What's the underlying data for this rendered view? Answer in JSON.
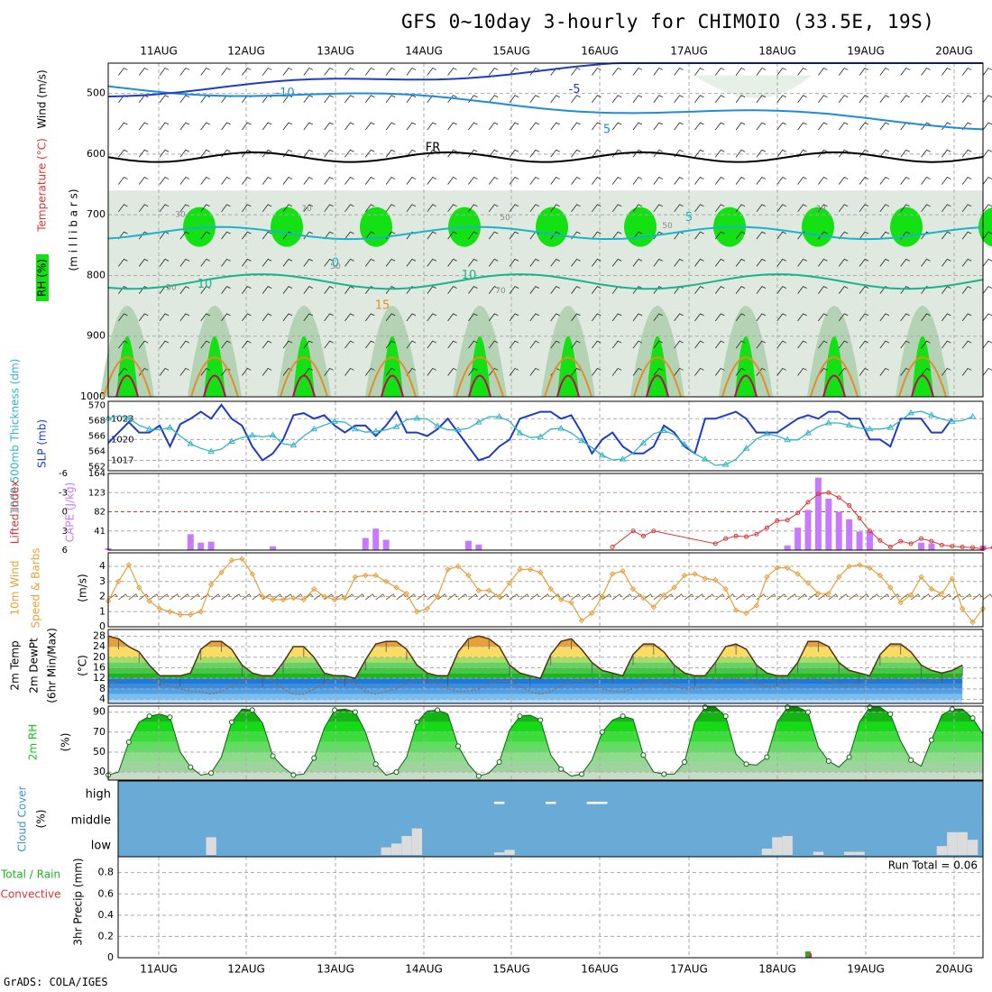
{
  "title": "GFS 0~10day 3-hourly for CHIMOIO (33.5E, 19S)",
  "credit": "GrADS: COLA/IGES",
  "days": [
    "11AUG",
    "12AUG",
    "13AUG",
    "14AUG",
    "15AUG",
    "16AUG",
    "17AUG",
    "18AUG",
    "19AUG",
    "20AUG"
  ],
  "colors": {
    "rh_dark": "#14e114",
    "rh_light": "#b4d2b4",
    "slp": "#1e3cc8",
    "thickness": "#32b4c8",
    "cape": "#c87aff",
    "lifted_index": "#e03232",
    "wind_speed": "#e6a03c",
    "barbs": "#8c5a28",
    "temp_warm": "#e6a03c",
    "temp_cool": "#1e78dc",
    "rh2m": "#14c814",
    "cloud_bg": "#6aaad6",
    "cloud_bar": "#dcdcdc",
    "precip_total": "#1eb41e",
    "precip_conv": "#e03232"
  },
  "chart_data": [
    {
      "type": "heatmap",
      "panel": "upper-air",
      "ylabel_parts": [
        "RH (%)",
        "Temperature (°C)",
        "Wind (m/s)"
      ],
      "ylabel_sub": "(m i l l i b a r s)",
      "y_ticks": [
        500,
        600,
        700,
        800,
        900,
        1000
      ],
      "ylim": [
        450,
        1000
      ],
      "contour_labels": [
        "-10",
        "-5",
        "FR",
        "5",
        "10",
        "15",
        "0",
        "5",
        "10"
      ],
      "rh_labels": [
        "70",
        "50",
        "30",
        "50",
        "70",
        "50",
        "30",
        "50"
      ]
    },
    {
      "type": "line",
      "panel": "pressure",
      "ylabel_left": "1000-500mb Thickness (dm)",
      "ylabel_right": "SLP (mb)",
      "left_ticks": [
        "570",
        "568",
        "566",
        "564",
        "562"
      ],
      "left_range": [
        561.5,
        570.5
      ],
      "right_ticks": [
        "1023",
        "1020",
        "1017"
      ],
      "right_range": [
        1015.5,
        1025.5
      ],
      "series": [
        {
          "name": "SLP",
          "axis": "right",
          "values": [
            1019.5,
            1021,
            1022.5,
            1021,
            1021,
            1022,
            1019,
            1022.2,
            1023,
            1024,
            1023,
            1025,
            1023,
            1022,
            1019,
            1017,
            1018,
            1020,
            1023.5,
            1023.8,
            1023,
            1023.5,
            1022,
            1021,
            1022,
            1022,
            1020.5,
            1022,
            1024,
            1021,
            1021,
            1020.5,
            1021.5,
            1023,
            1021,
            1019,
            1017,
            1017.5,
            1019,
            1020,
            1023,
            1023.5,
            1024,
            1024,
            1023,
            1023.5,
            1021,
            1018,
            1020,
            1021,
            1019,
            1018,
            1018,
            1019,
            1022,
            1021,
            1019,
            1018,
            1023,
            1023,
            1023.5,
            1024,
            1023,
            1021,
            1021,
            1021,
            1022,
            1023,
            1023.5,
            1023,
            1024,
            1024,
            1023,
            1023,
            1020,
            1020,
            1019,
            1023,
            1023,
            1023,
            1021,
            1021,
            1023
          ]
        },
        {
          "name": "Thickness",
          "axis": "left",
          "values": [
            568.3,
            568.6,
            568.3,
            567.4,
            566.9,
            566.8,
            567.1,
            566.0,
            565.0,
            564.4,
            564.0,
            564.3,
            565.3,
            565.8,
            566.1,
            565.9,
            566.1,
            565.0,
            564.8,
            566.0,
            566.9,
            567.4,
            567.9,
            567.8,
            566.9,
            566.5,
            566.6,
            566.8,
            567.2,
            568.1,
            568.3,
            568.2,
            567.3,
            566.8,
            566.8,
            567.0,
            567.8,
            568.5,
            568.5,
            567.9,
            566.4,
            565.8,
            565.9,
            566.9,
            567.0,
            566.4,
            565.4,
            564.5,
            563.5,
            562.9,
            563.0,
            563.8,
            565.1,
            566.3,
            566.7,
            566.2,
            564.9,
            563.7,
            563.0,
            562.2,
            562.3,
            563.0,
            564.4,
            565.6,
            566.3,
            566.0,
            565.5,
            565.5,
            566.4,
            567.2,
            567.7,
            567.7,
            567.4,
            567.0,
            566.9,
            566.9,
            567.1,
            568.0,
            569.0,
            569.2,
            568.7,
            568.2,
            567.9,
            568.0,
            568.5
          ]
        }
      ]
    },
    {
      "type": "bar",
      "panel": "instability",
      "ylabel_left": "Lifted Index",
      "ylabel_right": "CAPE (J/kg)",
      "left_ticks": [
        "-6",
        "-3",
        "0",
        "3",
        "6"
      ],
      "right_ticks": [
        "164",
        "123",
        "82",
        "41"
      ],
      "cape_range": [
        0,
        164
      ],
      "li_range": [
        -6,
        6
      ],
      "cape": [
        0,
        0,
        0,
        0,
        0,
        0,
        0,
        0,
        0,
        0,
        0,
        0,
        0,
        0,
        0,
        0,
        0,
        0,
        0,
        0,
        0,
        0,
        0,
        0,
        0,
        0,
        0,
        0,
        0,
        0,
        0,
        0,
        0,
        0,
        0,
        0,
        0,
        0,
        0,
        0,
        0,
        0,
        0,
        0,
        0,
        0,
        0,
        0,
        0,
        0,
        0,
        0,
        0,
        0,
        0,
        0,
        0,
        0,
        0,
        0,
        0,
        0,
        0,
        0,
        0,
        0,
        0,
        0,
        0,
        0,
        0,
        0,
        0,
        0,
        0,
        0,
        0,
        0,
        0,
        0,
        0
      ],
      "cape_bars": [
        [
          0,
          4
        ],
        [
          8,
          34
        ],
        [
          9,
          16
        ],
        [
          10,
          18
        ],
        [
          16,
          8
        ],
        [
          25,
          26
        ],
        [
          26,
          46
        ],
        [
          27,
          22
        ],
        [
          35,
          20
        ],
        [
          36,
          12
        ],
        [
          66,
          10
        ],
        [
          67,
          48
        ],
        [
          68,
          86
        ],
        [
          69,
          155
        ],
        [
          70,
          110
        ],
        [
          71,
          82
        ],
        [
          72,
          66
        ],
        [
          73,
          40
        ],
        [
          74,
          40
        ],
        [
          79,
          16
        ],
        [
          80,
          14
        ],
        [
          85,
          10
        ],
        [
          88,
          6
        ],
        [
          89,
          8
        ],
        [
          90,
          6
        ],
        [
          91,
          3
        ]
      ],
      "lifted_index": [
        [
          49,
          5.5
        ],
        [
          51,
          3
        ],
        [
          52,
          3.8
        ],
        [
          53,
          3
        ],
        [
          59,
          5
        ],
        [
          60,
          4.2
        ],
        [
          61,
          3.8
        ],
        [
          62,
          3.9
        ],
        [
          63,
          3.5
        ],
        [
          64,
          2.5
        ],
        [
          65,
          1.4
        ],
        [
          66,
          1.3
        ],
        [
          67,
          0.2
        ],
        [
          68,
          -1.5
        ],
        [
          69,
          -2.8
        ],
        [
          70,
          -3
        ],
        [
          71,
          -2.2
        ],
        [
          72,
          -1
        ],
        [
          73,
          1
        ],
        [
          74,
          3
        ],
        [
          75,
          4.5
        ],
        [
          76,
          5.5
        ],
        [
          77,
          4.6
        ],
        [
          78,
          5
        ],
        [
          79,
          4.2
        ],
        [
          80,
          4.6
        ],
        [
          81,
          5.2
        ],
        [
          82,
          5.4
        ],
        [
          83,
          5.5
        ],
        [
          84,
          5.6
        ],
        [
          85,
          5.8
        ],
        [
          86,
          5.6
        ],
        [
          87,
          5.3
        ],
        [
          88,
          5
        ],
        [
          89,
          5.4
        ],
        [
          90,
          5.7
        ]
      ]
    },
    {
      "type": "line",
      "panel": "wind",
      "ylabel_left": "10m Wind",
      "ylabel_mid": "Speed & Barbs",
      "ylabel_unit": "(m/s)",
      "y_ticks": [
        "4",
        "3",
        "2",
        "1",
        "0"
      ],
      "ylim": [
        0,
        4.9
      ],
      "series": [
        {
          "name": "10m Wind Speed",
          "values": [
            1.7,
            3,
            4.1,
            2.6,
            1.7,
            1.2,
            1,
            0.8,
            0.8,
            1.0,
            2.8,
            3.6,
            4.4,
            4.5,
            3.5,
            2.0,
            1.8,
            1.8,
            1.9,
            1.8,
            2.5,
            2.0,
            1.8,
            1.9,
            3.3,
            3.4,
            3.4,
            3.0,
            2.6,
            2.2,
            1.0,
            1.2,
            2.0,
            3.8,
            4.0,
            3.4,
            2.4,
            2.4,
            2.0,
            2.9,
            3.8,
            3.8,
            3.6,
            2.5,
            1.8,
            1.6,
            0.4,
            0.9,
            2.0,
            3.5,
            3.7,
            2.5,
            1.9,
            1.3,
            2.1,
            2.6,
            3.4,
            3.5,
            3.2,
            3.1,
            2.5,
            1.1,
            0.9,
            1.4,
            3.3,
            3.9,
            3.9,
            3.5,
            2.9,
            2.2,
            2.2,
            3.3,
            4.0,
            4.1,
            3.9,
            3.4,
            2.6,
            1.6,
            2.1,
            3.3,
            2.5,
            2.2,
            3.2,
            1.2,
            0.3,
            1.2
          ]
        }
      ]
    },
    {
      "type": "area",
      "panel": "temperature",
      "ylabel_lines": [
        "2m Temp",
        "2m DewPt",
        "(6hr Min/Max)"
      ],
      "ylabel_unit": "(°C)",
      "y_ticks": [
        "28",
        "24",
        "20",
        "16",
        "12",
        "8",
        "4"
      ],
      "ylim": [
        2.5,
        30.5
      ],
      "series": [
        {
          "name": "2m Temp",
          "values": [
            28,
            27,
            24,
            22,
            17,
            13,
            13,
            13,
            14,
            23,
            26,
            26,
            23,
            17,
            14,
            13,
            13,
            18,
            24,
            24,
            20,
            14,
            13,
            13,
            12,
            19,
            25,
            26,
            26,
            23,
            17,
            14,
            13,
            13,
            22,
            27,
            28,
            27,
            24,
            17,
            14,
            13,
            12,
            21,
            26,
            27,
            23,
            18,
            15,
            14,
            13,
            21,
            25,
            25,
            22,
            17,
            14,
            13,
            13,
            18,
            24,
            25,
            23,
            17,
            14,
            13,
            13,
            18,
            26,
            26,
            24,
            18,
            15,
            14,
            13,
            21,
            25,
            25,
            22,
            17,
            15,
            14,
            15,
            17
          ]
        },
        {
          "name": "2m DewPt",
          "values": [
            10,
            11,
            12,
            13,
            12,
            10,
            9,
            8,
            7,
            7,
            6,
            7,
            9,
            11,
            12,
            12,
            11,
            8,
            6,
            6,
            8,
            10,
            12,
            11,
            10,
            7,
            6,
            7,
            8,
            10,
            11,
            11,
            10,
            8,
            7,
            7,
            8,
            10,
            11,
            11,
            9,
            7,
            6,
            7,
            9,
            11,
            11,
            10,
            8,
            7,
            7,
            8,
            10,
            11,
            10,
            9,
            8,
            8,
            9,
            11,
            12,
            12,
            11,
            10,
            9,
            9,
            10,
            11,
            12,
            12,
            11,
            10,
            9,
            10,
            11,
            12,
            12,
            12,
            11,
            10,
            11,
            12,
            13,
            13
          ]
        }
      ]
    },
    {
      "type": "area",
      "panel": "humidity",
      "ylabel_left": "2m RH",
      "ylabel_unit": "(%)",
      "y_ticks": [
        "90",
        "70",
        "50",
        "30"
      ],
      "ylim": [
        22,
        96
      ],
      "values": [
        27,
        30,
        60,
        80,
        86,
        88,
        85,
        50,
        35,
        27,
        29,
        45,
        80,
        93,
        92,
        79,
        46,
        35,
        27,
        28,
        44,
        74,
        92,
        93,
        90,
        70,
        38,
        27,
        30,
        45,
        80,
        91,
        92,
        88,
        56,
        38,
        26,
        29,
        40,
        72,
        86,
        87,
        82,
        47,
        33,
        26,
        28,
        42,
        70,
        82,
        86,
        83,
        47,
        30,
        28,
        28,
        40,
        80,
        95,
        95,
        86,
        48,
        38,
        37,
        45,
        80,
        95,
        95,
        90,
        55,
        41,
        35,
        45,
        80,
        95,
        95,
        88,
        61,
        42,
        36,
        62,
        87,
        93,
        93,
        84,
        68
      ]
    },
    {
      "type": "bar",
      "panel": "cloud",
      "ylabel_left": "Cloud Cover",
      "ylabel_unit": "(%)",
      "y_labels": [
        "high",
        "middle",
        "low"
      ],
      "low": [
        [
          10,
          28
        ],
        [
          27,
          12
        ],
        [
          28,
          18
        ],
        [
          29,
          30
        ],
        [
          30,
          42
        ],
        [
          38,
          4
        ],
        [
          39,
          8
        ],
        [
          64,
          10
        ],
        [
          65,
          28
        ],
        [
          66,
          30
        ],
        [
          69,
          5
        ],
        [
          72,
          5
        ],
        [
          73,
          5
        ],
        [
          81,
          14
        ],
        [
          82,
          36
        ],
        [
          83,
          36
        ],
        [
          84,
          24
        ],
        [
          89,
          22
        ]
      ],
      "high": [
        [
          38,
          8
        ],
        [
          43,
          8
        ],
        [
          47,
          8
        ],
        [
          48,
          8
        ]
      ]
    },
    {
      "type": "bar",
      "panel": "precipitation",
      "ylabel_left": "Total / Rain",
      "ylabel_conv": "Convective",
      "ylabel_unit": "3hr Precip (mm)",
      "y_ticks": [
        "0.8",
        "0.6",
        "0.4",
        "0.2",
        "0"
      ],
      "ylim": [
        0,
        0.95
      ],
      "run_total_label": "Run Total = 0.06",
      "total": [
        [
          68,
          0.06
        ]
      ],
      "convective": [
        [
          68,
          0.04
        ]
      ]
    }
  ]
}
